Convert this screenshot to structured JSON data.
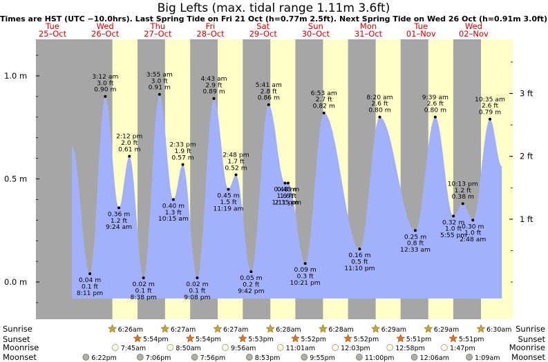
{
  "title": "Big Lefts (max. tidal range 1.11m 3.6ft)",
  "subtitle": "Times are HST (UTC −10.0hrs). Last Spring Tide on Fri 21 Oct (h=0.77m 2.5ft). Next Spring Tide on Wed 26 Oct (h=0.91m 3.0ft)",
  "colors": {
    "night": "#a6a6a6",
    "day": "#ffffc8",
    "water": "#a3b1fc",
    "day_label": "#d40000",
    "sun_star": "#c8a830",
    "sunset_star": "#e0702a",
    "moon_fill": "#ffffdd",
    "moonset_fill": "#b0b0a0"
  },
  "days": [
    {
      "weekday": "Tue",
      "date": "25–Oct"
    },
    {
      "weekday": "Wed",
      "date": "26–Oct"
    },
    {
      "weekday": "Thu",
      "date": "27–Oct"
    },
    {
      "weekday": "Fri",
      "date": "28–Oct"
    },
    {
      "weekday": "Sat",
      "date": "29–Oct"
    },
    {
      "weekday": "Sun",
      "date": "30–Oct"
    },
    {
      "weekday": "Mon",
      "date": "31–Oct"
    },
    {
      "weekday": "Tue",
      "date": "01–Nov"
    },
    {
      "weekday": "Wed",
      "date": "02–Nov"
    }
  ],
  "chart_data": {
    "type": "area",
    "x_unit": "hours from 25-Oct 00:00 HST",
    "y_unit": "m",
    "ylim": [
      -0.14,
      1.18
    ],
    "yticks_m": [
      0.0,
      0.5,
      1.0
    ],
    "ytick_labels_m": [
      "0.0 m",
      "0.5 m",
      "1.0 m"
    ],
    "yticks_ft": [
      1,
      2,
      3
    ],
    "ytick_labels_ft": [
      "1 ft",
      "2 ft",
      "3 ft"
    ],
    "data_start": {
      "t": 12.0,
      "h": 0.66
    },
    "data_end": {
      "t": 208.0,
      "h": 0.56
    },
    "extremes": [
      {
        "t": 20.18,
        "h": 0.04,
        "time": "8:11 pm",
        "ft": "0.1 ft",
        "m": "0.04 m"
      },
      {
        "t": 27.2,
        "h": 0.9,
        "time": "3:12 am",
        "ft": "3.0 ft",
        "m": "0.90 m"
      },
      {
        "t": 33.4,
        "h": 0.36,
        "time": "9:24 am",
        "ft": "1.2 ft",
        "m": "0.36 m"
      },
      {
        "t": 38.2,
        "h": 0.61,
        "time": "2:12 pm",
        "ft": "2.0 ft",
        "m": "0.61 m"
      },
      {
        "t": 44.63,
        "h": 0.02,
        "time": "8:38 pm",
        "ft": "0.1 ft",
        "m": "0.02 m"
      },
      {
        "t": 51.92,
        "h": 0.91,
        "time": "3:55 am",
        "ft": "3.0 ft",
        "m": "0.91 m"
      },
      {
        "t": 58.25,
        "h": 0.4,
        "time": "10:15 am",
        "ft": "1.3 ft",
        "m": "0.40 m"
      },
      {
        "t": 62.55,
        "h": 0.57,
        "time": "2:33 pm",
        "ft": "1.9 ft",
        "m": "0.57 m"
      },
      {
        "t": 69.13,
        "h": 0.02,
        "time": "9:08 pm",
        "ft": "0.1 ft",
        "m": "0.02 m"
      },
      {
        "t": 76.72,
        "h": 0.89,
        "time": "4:43 am",
        "ft": "2.9 ft",
        "m": "0.89 m"
      },
      {
        "t": 83.32,
        "h": 0.45,
        "time": "11:19 am",
        "ft": "1.5 ft",
        "m": "0.45 m"
      },
      {
        "t": 86.8,
        "h": 0.52,
        "time": "2:48 pm",
        "ft": "1.7 ft",
        "m": "0.52 m"
      },
      {
        "t": 93.7,
        "h": 0.05,
        "time": "9:42 pm",
        "ft": "0.2 ft",
        "m": "0.05 m"
      },
      {
        "t": 101.68,
        "h": 0.86,
        "time": "5:41 am",
        "ft": "2.8 ft",
        "m": "0.86 m"
      },
      {
        "t": 109.18,
        "h": 0.48,
        "time": "1:11 pm",
        "ft": "1.6 ft",
        "m": "0.48 m"
      },
      {
        "t": 110.58,
        "h": 0.48,
        "time": "2:35 pm",
        "ft": "1.6 ft",
        "m": "0.48 m"
      },
      {
        "t": 118.35,
        "h": 0.09,
        "time": "10:21 pm",
        "ft": "0.3 ft",
        "m": "0.09 m"
      },
      {
        "t": 126.88,
        "h": 0.82,
        "time": "6:53 am",
        "ft": "2.7 ft",
        "m": "0.82 m"
      },
      {
        "t": 143.17,
        "h": 0.16,
        "time": "11:10 pm",
        "ft": "0.5 ft",
        "m": "0.16 m"
      },
      {
        "t": 152.33,
        "h": 0.8,
        "time": "8:20 am",
        "ft": "2.6 ft",
        "m": "0.80 m"
      },
      {
        "t": 168.55,
        "h": 0.25,
        "time": "12:33 am",
        "ft": "0.8 ft",
        "m": "0.25 m"
      },
      {
        "t": 177.65,
        "h": 0.8,
        "time": "9:39 am",
        "ft": "2.6 ft",
        "m": "0.80 m"
      },
      {
        "t": 185.92,
        "h": 0.32,
        "time": "5:55 pm",
        "ft": "1.0 ft",
        "m": "0.32 m"
      },
      {
        "t": 190.22,
        "h": 0.38,
        "time": "10:13 pm",
        "ft": "1.2 ft",
        "m": "0.38 m"
      },
      {
        "t": 194.8,
        "h": 0.3,
        "time": "2:48 am",
        "ft": "1.0 ft",
        "m": "0.30 m"
      },
      {
        "t": 202.58,
        "h": 0.79,
        "time": "10:35 am",
        "ft": "2.6 ft",
        "m": "0.79 m"
      }
    ]
  },
  "rows": {
    "sunrise_label": "Sunrise",
    "sunset_label": "Sunset",
    "moonrise_label": "Moonrise",
    "moonset_label": "Moonset",
    "sunrise": [
      {
        "t": 30.43,
        "text": "6:26am"
      },
      {
        "t": 54.45,
        "text": "6:27am"
      },
      {
        "t": 78.45,
        "text": "6:27am"
      },
      {
        "t": 102.47,
        "text": "6:28am"
      },
      {
        "t": 126.47,
        "text": "6:28am"
      },
      {
        "t": 150.48,
        "text": "6:29am"
      },
      {
        "t": 174.48,
        "text": "6:29am"
      },
      {
        "t": 198.5,
        "text": "6:30am"
      }
    ],
    "sunset": [
      {
        "t": 41.9,
        "text": "5:54pm"
      },
      {
        "t": 65.9,
        "text": "5:54pm"
      },
      {
        "t": 89.88,
        "text": "5:53pm"
      },
      {
        "t": 113.87,
        "text": "5:52pm"
      },
      {
        "t": 137.87,
        "text": "5:52pm"
      },
      {
        "t": 161.85,
        "text": "5:51pm"
      },
      {
        "t": 185.85,
        "text": "5:51pm"
      }
    ],
    "moonrise": [
      {
        "t": 31.75,
        "text": "7:45am"
      },
      {
        "t": 56.83,
        "text": "8:50am"
      },
      {
        "t": 81.93,
        "text": "9:56am"
      },
      {
        "t": 107.02,
        "text": "11:01am"
      },
      {
        "t": 132.05,
        "text": "12:03pm"
      },
      {
        "t": 156.97,
        "text": "12:58pm"
      },
      {
        "t": 181.78,
        "text": "1:47pm"
      }
    ],
    "moonset": [
      {
        "t": 18.37,
        "text": "6:22pm"
      },
      {
        "t": 43.1,
        "text": "7:06pm"
      },
      {
        "t": 67.93,
        "text": "7:56pm"
      },
      {
        "t": 92.88,
        "text": "8:53pm"
      },
      {
        "t": 117.92,
        "text": "9:55pm"
      },
      {
        "t": 143.0,
        "text": "11:00pm"
      },
      {
        "t": 168.1,
        "text": "12:06am"
      },
      {
        "t": 193.15,
        "text": "1:09am"
      }
    ]
  }
}
